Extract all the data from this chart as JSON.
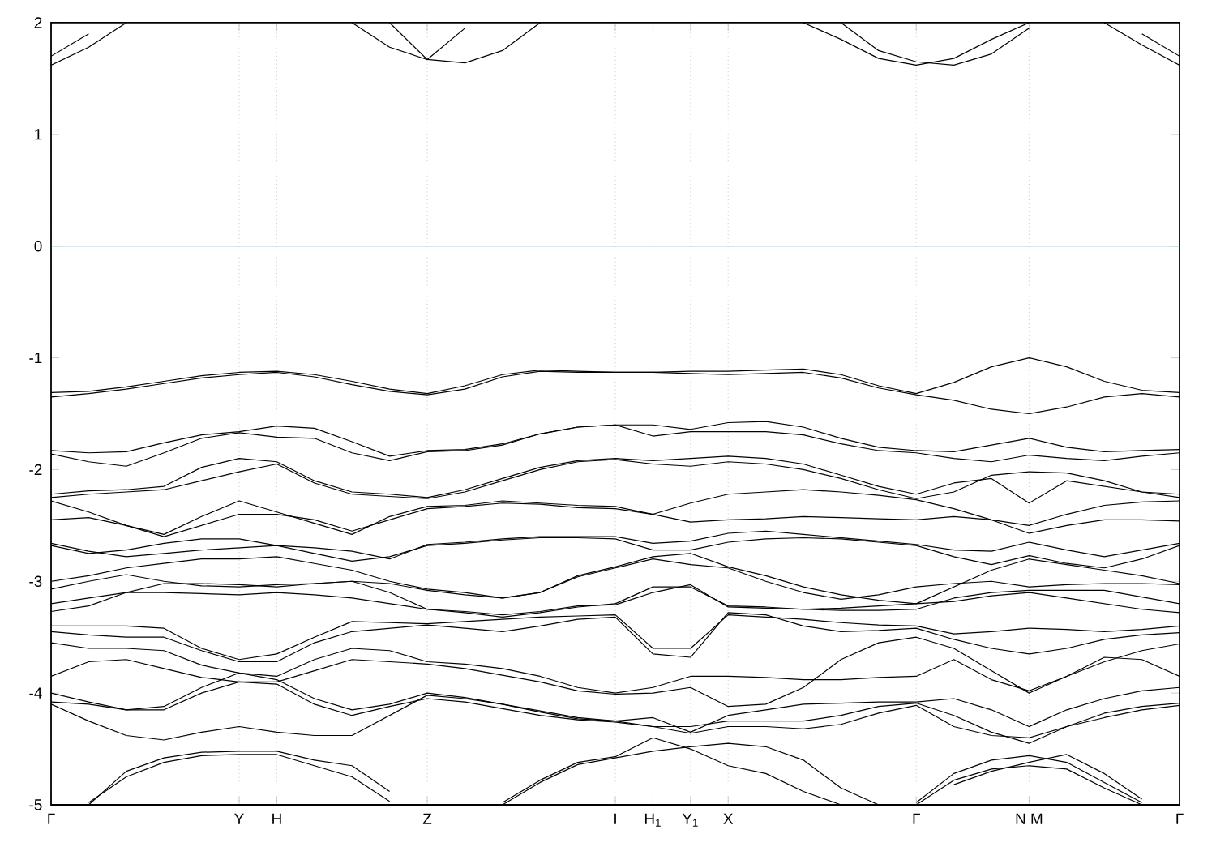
{
  "chart_data": {
    "type": "line",
    "color": "#000000",
    "grid": "x",
    "marker": "none",
    "line_style": "solid",
    "ylim": [
      -5,
      2
    ],
    "yticks": [
      -5,
      -4,
      -3,
      -2,
      -1,
      0,
      1,
      2
    ],
    "categories": [
      "Γ",
      null,
      null,
      null,
      null,
      "Y",
      "H",
      null,
      null,
      null,
      "Z",
      null,
      null,
      null,
      null,
      "I",
      "H$_{1}$",
      "Y$_{1}$",
      "X",
      null,
      null,
      null,
      null,
      "Γ",
      null,
      null,
      "N M",
      null,
      null,
      null,
      "Γ"
    ],
    "ref_lines": [
      {
        "axis": "y",
        "value": 0,
        "color": "#45a8d8"
      }
    ],
    "series": [
      {
        "values": [
          1.62,
          1.78,
          2.0,
          null,
          null,
          null,
          null,
          null,
          null,
          null,
          null,
          null,
          null,
          null,
          null,
          null,
          null,
          null,
          null,
          null,
          null,
          null,
          null,
          null,
          null,
          null,
          null,
          null,
          null,
          null,
          null
        ]
      },
      {
        "values": [
          1.7,
          1.9,
          null,
          null,
          null,
          null,
          null,
          null,
          null,
          null,
          null,
          null,
          null,
          null,
          null,
          null,
          null,
          null,
          null,
          null,
          null,
          null,
          null,
          null,
          null,
          null,
          null,
          null,
          null,
          null,
          null
        ]
      },
      {
        "values": [
          null,
          null,
          null,
          null,
          null,
          null,
          null,
          null,
          2.0,
          1.78,
          1.67,
          1.64,
          1.75,
          2.0,
          null,
          null,
          null,
          null,
          null,
          null,
          null,
          null,
          null,
          null,
          null,
          null,
          null,
          null,
          null,
          null,
          null
        ]
      },
      {
        "values": [
          null,
          null,
          null,
          null,
          null,
          null,
          null,
          null,
          null,
          2.0,
          1.67,
          1.95,
          null,
          null,
          null,
          null,
          null,
          null,
          null,
          null,
          null,
          null,
          null,
          null,
          null,
          null,
          null,
          null,
          null,
          null,
          null
        ]
      },
      {
        "values": [
          null,
          null,
          null,
          null,
          null,
          null,
          null,
          null,
          null,
          null,
          null,
          null,
          null,
          null,
          null,
          null,
          null,
          null,
          null,
          null,
          2.0,
          1.85,
          1.68,
          1.62,
          1.68,
          1.85,
          2.0,
          null,
          null,
          null,
          null
        ]
      },
      {
        "values": [
          null,
          null,
          null,
          null,
          null,
          null,
          null,
          null,
          null,
          null,
          null,
          null,
          null,
          null,
          null,
          null,
          null,
          null,
          null,
          null,
          null,
          2.0,
          1.75,
          1.65,
          1.62,
          1.72,
          1.95,
          null,
          null,
          null,
          null
        ]
      },
      {
        "values": [
          null,
          null,
          null,
          null,
          null,
          null,
          null,
          null,
          null,
          null,
          null,
          null,
          null,
          null,
          null,
          null,
          null,
          null,
          null,
          null,
          null,
          null,
          null,
          null,
          null,
          null,
          null,
          null,
          2.0,
          1.8,
          1.62
        ]
      },
      {
        "values": [
          null,
          null,
          null,
          null,
          null,
          null,
          null,
          null,
          null,
          null,
          null,
          null,
          null,
          null,
          null,
          null,
          null,
          null,
          null,
          null,
          null,
          null,
          null,
          null,
          null,
          null,
          null,
          null,
          null,
          1.9,
          1.7
        ]
      },
      {
        "values": [
          -1.31,
          -1.3,
          -1.26,
          -1.21,
          -1.16,
          -1.13,
          -1.12,
          -1.15,
          -1.21,
          -1.28,
          -1.32,
          -1.25,
          -1.15,
          -1.11,
          -1.12,
          -1.13,
          -1.13,
          -1.12,
          -1.12,
          -1.11,
          -1.1,
          -1.15,
          -1.25,
          -1.32,
          -1.22,
          -1.08,
          -1.0,
          -1.08,
          -1.21,
          -1.29,
          -1.31
        ]
      },
      {
        "values": [
          -1.35,
          -1.32,
          -1.28,
          -1.23,
          -1.18,
          -1.15,
          -1.13,
          -1.17,
          -1.24,
          -1.3,
          -1.33,
          -1.28,
          -1.17,
          -1.12,
          -1.13,
          -1.13,
          -1.13,
          -1.14,
          -1.15,
          -1.14,
          -1.13,
          -1.18,
          -1.27,
          -1.33,
          -1.38,
          -1.46,
          -1.5,
          -1.44,
          -1.35,
          -1.32,
          -1.35
        ]
      },
      {
        "values": [
          -1.83,
          -1.85,
          -1.84,
          -1.76,
          -1.69,
          -1.66,
          -1.61,
          -1.63,
          -1.75,
          -1.88,
          -1.83,
          -1.82,
          -1.77,
          -1.68,
          -1.62,
          -1.6,
          -1.6,
          -1.64,
          -1.58,
          -1.57,
          -1.62,
          -1.72,
          -1.8,
          -1.83,
          -1.84,
          -1.78,
          -1.72,
          -1.8,
          -1.84,
          -1.83,
          -1.82
        ]
      },
      {
        "values": [
          -1.86,
          -1.93,
          -1.97,
          -1.85,
          -1.72,
          -1.67,
          -1.71,
          -1.72,
          -1.85,
          -1.92,
          -1.84,
          -1.83,
          -1.78,
          -1.68,
          -1.62,
          -1.6,
          -1.7,
          -1.66,
          -1.66,
          -1.66,
          -1.69,
          -1.77,
          -1.83,
          -1.85,
          -1.9,
          -1.93,
          -1.87,
          -1.9,
          -1.92,
          -1.88,
          -1.85
        ]
      },
      {
        "values": [
          -2.22,
          -2.19,
          -2.18,
          -2.15,
          -1.98,
          -1.9,
          -1.93,
          -2.1,
          -2.2,
          -2.22,
          -2.25,
          -2.18,
          -2.08,
          -1.98,
          -1.92,
          -1.9,
          -1.92,
          -1.9,
          -1.88,
          -1.9,
          -1.95,
          -2.05,
          -2.15,
          -2.22,
          -2.12,
          -2.08,
          -2.3,
          -2.1,
          -2.15,
          -2.2,
          -2.22
        ]
      },
      {
        "values": [
          -2.25,
          -2.22,
          -2.2,
          -2.18,
          -2.1,
          -2.02,
          -1.95,
          -2.12,
          -2.22,
          -2.24,
          -2.26,
          -2.2,
          -2.1,
          -2.0,
          -1.93,
          -1.91,
          -1.95,
          -1.97,
          -1.93,
          -1.95,
          -2.0,
          -2.08,
          -2.18,
          -2.26,
          -2.2,
          -2.05,
          -2.02,
          -2.03,
          -2.1,
          -2.2,
          -2.25
        ]
      },
      {
        "values": [
          -2.28,
          -2.38,
          -2.5,
          -2.58,
          -2.42,
          -2.28,
          -2.38,
          -2.48,
          -2.58,
          -2.42,
          -2.33,
          -2.32,
          -2.28,
          -2.3,
          -2.32,
          -2.33,
          -2.4,
          -2.3,
          -2.22,
          -2.2,
          -2.18,
          -2.2,
          -2.23,
          -2.27,
          -2.35,
          -2.45,
          -2.5,
          -2.4,
          -2.32,
          -2.29,
          -2.28
        ]
      },
      {
        "values": [
          -2.45,
          -2.43,
          -2.5,
          -2.6,
          -2.5,
          -2.4,
          -2.4,
          -2.45,
          -2.55,
          -2.45,
          -2.35,
          -2.33,
          -2.3,
          -2.31,
          -2.34,
          -2.35,
          -2.4,
          -2.47,
          -2.45,
          -2.44,
          -2.42,
          -2.43,
          -2.44,
          -2.45,
          -2.42,
          -2.45,
          -2.57,
          -2.5,
          -2.45,
          -2.45,
          -2.46
        ]
      },
      {
        "values": [
          -2.66,
          -2.73,
          -2.78,
          -2.75,
          -2.72,
          -2.7,
          -2.68,
          -2.7,
          -2.73,
          -2.8,
          -2.67,
          -2.65,
          -2.62,
          -2.6,
          -2.6,
          -2.6,
          -2.66,
          -2.64,
          -2.57,
          -2.55,
          -2.58,
          -2.61,
          -2.64,
          -2.67,
          -2.72,
          -2.73,
          -2.65,
          -2.72,
          -2.78,
          -2.72,
          -2.66
        ]
      },
      {
        "values": [
          -2.68,
          -2.75,
          -2.72,
          -2.66,
          -2.62,
          -2.62,
          -2.68,
          -2.75,
          -2.82,
          -2.78,
          -2.68,
          -2.66,
          -2.63,
          -2.61,
          -2.61,
          -2.62,
          -2.72,
          -2.72,
          -2.65,
          -2.62,
          -2.61,
          -2.62,
          -2.65,
          -2.68,
          -2.78,
          -2.85,
          -2.77,
          -2.84,
          -2.88,
          -2.8,
          -2.68
        ]
      },
      {
        "values": [
          -3.0,
          -2.95,
          -2.88,
          -2.84,
          -2.8,
          -2.8,
          -2.78,
          -2.84,
          -2.9,
          -3.0,
          -3.07,
          -3.1,
          -3.15,
          -3.1,
          -2.95,
          -2.87,
          -2.78,
          -2.75,
          -2.87,
          -2.95,
          -3.05,
          -3.12,
          -3.17,
          -3.2,
          -3.05,
          -2.9,
          -2.8,
          -2.85,
          -2.9,
          -2.95,
          -3.02
        ]
      },
      {
        "values": [
          -3.07,
          -3.0,
          -2.94,
          -3.0,
          -3.04,
          -3.05,
          -3.03,
          -3.02,
          -3.0,
          -3.02,
          -3.08,
          -3.12,
          -3.15,
          -3.1,
          -2.96,
          -2.88,
          -2.8,
          -2.85,
          -2.88,
          -3.0,
          -3.1,
          -3.16,
          -3.12,
          -3.05,
          -3.02,
          -3.0,
          -3.05,
          -3.03,
          -3.02,
          -3.02,
          -3.03
        ]
      },
      {
        "values": [
          -3.2,
          -3.15,
          -3.1,
          -3.1,
          -3.11,
          -3.12,
          -3.1,
          -3.12,
          -3.15,
          -3.2,
          -3.25,
          -3.28,
          -3.32,
          -3.28,
          -3.23,
          -3.2,
          -3.05,
          -3.05,
          -3.22,
          -3.23,
          -3.25,
          -3.26,
          -3.26,
          -3.25,
          -3.15,
          -3.1,
          -3.08,
          -3.08,
          -3.08,
          -3.14,
          -3.2
        ]
      },
      {
        "values": [
          -3.27,
          -3.22,
          -3.1,
          -3.02,
          -3.02,
          -3.03,
          -3.05,
          -3.02,
          -3.0,
          -3.1,
          -3.25,
          -3.27,
          -3.3,
          -3.27,
          -3.22,
          -3.21,
          -3.1,
          -3.03,
          -3.23,
          -3.24,
          -3.25,
          -3.24,
          -3.22,
          -3.2,
          -3.18,
          -3.13,
          -3.1,
          -3.15,
          -3.2,
          -3.25,
          -3.28
        ]
      },
      {
        "values": [
          -3.4,
          -3.4,
          -3.4,
          -3.42,
          -3.6,
          -3.7,
          -3.65,
          -3.5,
          -3.36,
          -3.37,
          -3.38,
          -3.36,
          -3.34,
          -3.32,
          -3.31,
          -3.3,
          -3.6,
          -3.6,
          -3.3,
          -3.32,
          -3.34,
          -3.37,
          -3.39,
          -3.4,
          -3.47,
          -3.45,
          -3.42,
          -3.43,
          -3.45,
          -3.43,
          -3.4
        ]
      },
      {
        "values": [
          -3.45,
          -3.48,
          -3.5,
          -3.5,
          -3.62,
          -3.72,
          -3.72,
          -3.55,
          -3.45,
          -3.42,
          -3.39,
          -3.42,
          -3.45,
          -3.4,
          -3.34,
          -3.32,
          -3.65,
          -3.68,
          -3.28,
          -3.3,
          -3.4,
          -3.45,
          -3.44,
          -3.42,
          -3.52,
          -3.6,
          -3.65,
          -3.6,
          -3.52,
          -3.48,
          -3.46
        ]
      },
      {
        "values": [
          -3.55,
          -3.6,
          -3.6,
          -3.62,
          -3.75,
          -3.82,
          -3.85,
          -3.7,
          -3.6,
          -3.62,
          -3.72,
          -3.74,
          -3.78,
          -3.85,
          -3.95,
          -4.0,
          -3.95,
          -3.85,
          -3.85,
          -3.86,
          -3.88,
          -3.88,
          -3.86,
          -3.85,
          -3.7,
          -3.88,
          -3.98,
          -3.85,
          -3.72,
          -3.62,
          -3.56
        ]
      },
      {
        "values": [
          -3.85,
          -3.72,
          -3.7,
          -3.78,
          -3.86,
          -3.9,
          -3.9,
          -3.8,
          -3.7,
          -3.72,
          -3.74,
          -3.78,
          -3.84,
          -3.9,
          -3.98,
          -4.01,
          -4.0,
          -3.95,
          -4.12,
          -4.1,
          -3.95,
          -3.7,
          -3.55,
          -3.5,
          -3.6,
          -3.8,
          -4.0,
          -3.85,
          -3.68,
          -3.7,
          -3.85
        ]
      },
      {
        "values": [
          -4.0,
          -4.08,
          -4.15,
          -4.12,
          -3.95,
          -3.82,
          -3.88,
          -4.05,
          -4.15,
          -4.1,
          -4.0,
          -4.04,
          -4.1,
          -4.16,
          -4.22,
          -4.25,
          -4.22,
          -4.35,
          -4.2,
          -4.15,
          -4.1,
          -4.09,
          -4.08,
          -4.08,
          -4.05,
          -4.15,
          -4.3,
          -4.15,
          -4.05,
          -3.98,
          -3.95
        ]
      },
      {
        "values": [
          -4.08,
          -4.1,
          -4.15,
          -4.15,
          -4.0,
          -3.9,
          -3.92,
          -4.1,
          -4.2,
          -4.12,
          -4.05,
          -4.08,
          -4.14,
          -4.2,
          -4.24,
          -4.26,
          -4.3,
          -4.3,
          -4.25,
          -4.25,
          -4.25,
          -4.2,
          -4.12,
          -4.09,
          -4.2,
          -4.35,
          -4.45,
          -4.3,
          -4.18,
          -4.12,
          -4.09
        ]
      },
      {
        "values": [
          -4.1,
          -4.25,
          -4.38,
          -4.42,
          -4.35,
          -4.3,
          -4.35,
          -4.38,
          -4.38,
          -4.2,
          -4.02,
          -4.05,
          -4.1,
          -4.17,
          -4.23,
          -4.25,
          -4.3,
          -4.36,
          -4.3,
          -4.3,
          -4.32,
          -4.28,
          -4.18,
          -4.11,
          -4.3,
          -4.38,
          -4.4,
          -4.3,
          -4.22,
          -4.15,
          -4.11
        ]
      },
      {
        "values": [
          null,
          -5.0,
          -4.7,
          -4.58,
          -4.53,
          -4.52,
          -4.52,
          -4.6,
          -4.65,
          -4.88,
          null,
          null,
          null,
          null,
          null,
          null,
          null,
          null,
          null,
          null,
          null,
          null,
          null,
          null,
          null,
          null,
          null,
          null,
          null,
          null,
          null
        ]
      },
      {
        "values": [
          null,
          -4.98,
          -4.75,
          -4.62,
          -4.56,
          -4.55,
          -4.55,
          -4.65,
          -4.75,
          -4.97,
          null,
          null,
          null,
          null,
          null,
          null,
          null,
          null,
          null,
          null,
          null,
          null,
          null,
          null,
          null,
          null,
          null,
          null,
          null,
          null,
          null
        ]
      },
      {
        "values": [
          null,
          null,
          null,
          null,
          null,
          null,
          null,
          null,
          null,
          null,
          null,
          null,
          -4.98,
          -4.78,
          -4.62,
          -4.57,
          -4.4,
          -4.5,
          -4.65,
          -4.72,
          -4.88,
          -5.0,
          null,
          null,
          null,
          null,
          null,
          null,
          null,
          null,
          null
        ]
      },
      {
        "values": [
          null,
          null,
          null,
          null,
          null,
          null,
          null,
          null,
          null,
          null,
          null,
          null,
          -5.0,
          -4.8,
          -4.64,
          -4.58,
          -4.52,
          -4.48,
          -4.45,
          -4.48,
          -4.6,
          -4.85,
          -5.0,
          null,
          null,
          null,
          null,
          null,
          null,
          null,
          null
        ]
      },
      {
        "values": [
          null,
          null,
          null,
          null,
          null,
          null,
          null,
          null,
          null,
          null,
          null,
          null,
          null,
          null,
          null,
          null,
          null,
          null,
          null,
          null,
          null,
          null,
          null,
          -4.98,
          -4.72,
          -4.6,
          -4.56,
          -4.62,
          -4.8,
          -4.98,
          null
        ]
      },
      {
        "values": [
          null,
          null,
          null,
          null,
          null,
          null,
          null,
          null,
          null,
          null,
          null,
          null,
          null,
          null,
          null,
          null,
          null,
          null,
          null,
          null,
          null,
          null,
          null,
          -5.0,
          -4.78,
          -4.68,
          -4.65,
          -4.68,
          -4.85,
          -5.0,
          null
        ]
      },
      {
        "values": [
          null,
          null,
          null,
          null,
          null,
          null,
          null,
          null,
          null,
          null,
          null,
          null,
          null,
          null,
          null,
          null,
          null,
          null,
          null,
          null,
          null,
          null,
          null,
          null,
          -4.82,
          -4.7,
          -4.62,
          -4.55,
          -4.72,
          -4.95,
          null
        ]
      }
    ]
  }
}
